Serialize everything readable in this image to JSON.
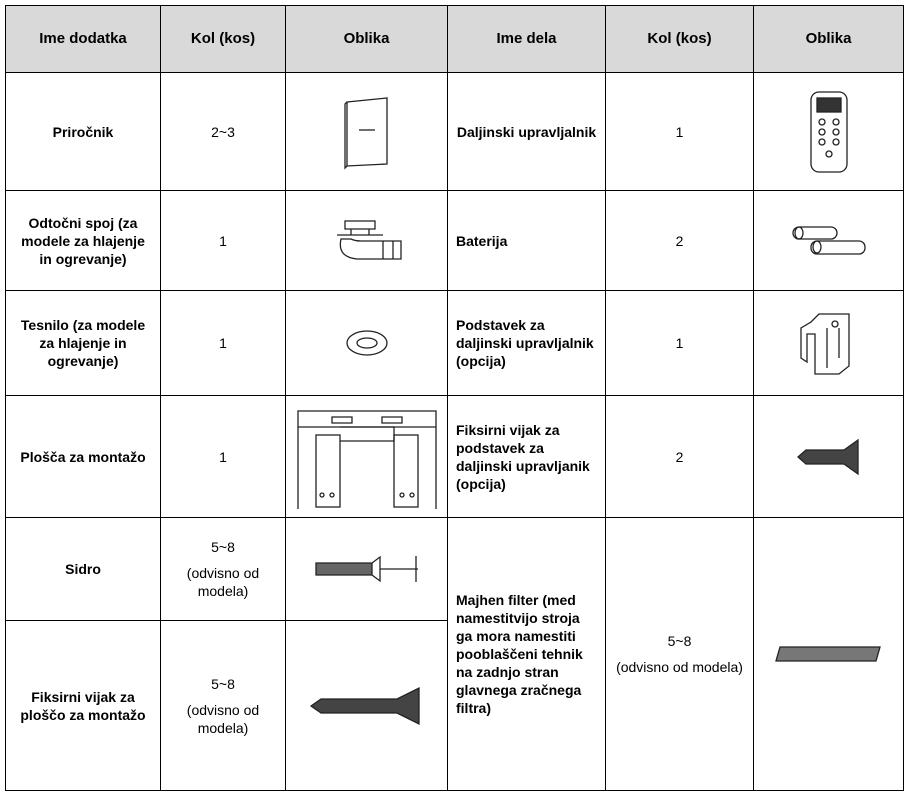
{
  "table": {
    "header": [
      "Ime dodatka",
      "Kol (kos)",
      "Oblika",
      "Ime dela",
      "Kol (kos)",
      "Oblika"
    ],
    "rows": [
      {
        "name": "Priročnik",
        "qty": "2~3",
        "part": "Daljinski upravljalnik",
        "part_qty": "1"
      },
      {
        "name": "Odtočni spoj (za modele za hlajenje in ogrevanje)",
        "qty": "1",
        "part": "Baterija",
        "part_qty": "2"
      },
      {
        "name": "Tesnilo (za modele za hlajenje in ogrevanje)",
        "qty": "1",
        "part": "Podstavek za daljinski upravljalnik (opcija)",
        "part_qty": "1"
      },
      {
        "name": "Plošča za montažo",
        "qty": "1",
        "part": "Fiksirni vijak za podstavek za daljinski upravljanik (opcija)",
        "part_qty": "2"
      },
      {
        "name": "Sidro",
        "qty": "5~8",
        "qty_note": "(odvisno od modela)"
      },
      {
        "name": "Fiksirni vijak za ploščo za montažo",
        "qty": "5~8",
        "qty_note": "(odvisno od modela)"
      }
    ],
    "filter": {
      "part": "Majhen filter (med namestitvijo stroja ga mora namestiti pooblaščeni tehnik na zadnjo stran glavnega zračnega filtra)",
      "part_qty": "5~8",
      "qty_note": "(odvisno od modela)"
    }
  }
}
